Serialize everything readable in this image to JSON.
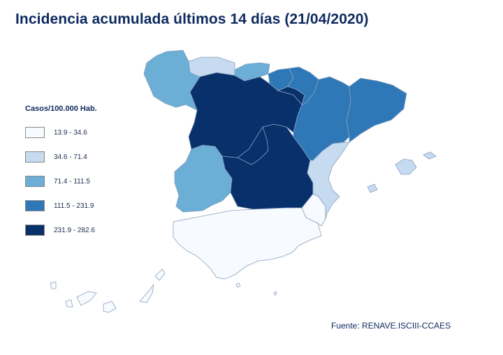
{
  "title": "Incidencia acumulada últimos 14 días (21/04/2020)",
  "legend": {
    "title": "Casos/100.000 Hab.",
    "items": [
      {
        "label": "13.9 - 34.6",
        "color": "#f7fbff"
      },
      {
        "label": "34.6 - 71.4",
        "color": "#c6dbef"
      },
      {
        "label": "71.4 - 111.5",
        "color": "#6baed6"
      },
      {
        "label": "111.5 - 231.9",
        "color": "#2e78b8"
      },
      {
        "label": "231.9 - 282.6",
        "color": "#08306b"
      }
    ]
  },
  "source": "Fuente: RENAVE.ISCIII-CCAES",
  "regions": [
    {
      "name": "Galicia",
      "class": 2
    },
    {
      "name": "Asturias",
      "class": 1
    },
    {
      "name": "Cantabria",
      "class": 2
    },
    {
      "name": "País Vasco",
      "class": 3
    },
    {
      "name": "Navarra",
      "class": 3
    },
    {
      "name": "La Rioja",
      "class": 4
    },
    {
      "name": "Aragón",
      "class": 3
    },
    {
      "name": "Cataluña",
      "class": 3
    },
    {
      "name": "Castilla y León",
      "class": 4
    },
    {
      "name": "Madrid",
      "class": 4
    },
    {
      "name": "Castilla-La Mancha",
      "class": 4
    },
    {
      "name": "Extremadura",
      "class": 2
    },
    {
      "name": "C. Valenciana",
      "class": 1
    },
    {
      "name": "Murcia",
      "class": 0
    },
    {
      "name": "Andalucía",
      "class": 0
    },
    {
      "name": "Baleares",
      "class": 1
    },
    {
      "name": "Canarias",
      "class": 0
    },
    {
      "name": "Ceuta",
      "class": 0
    },
    {
      "name": "Melilla",
      "class": 0
    }
  ]
}
